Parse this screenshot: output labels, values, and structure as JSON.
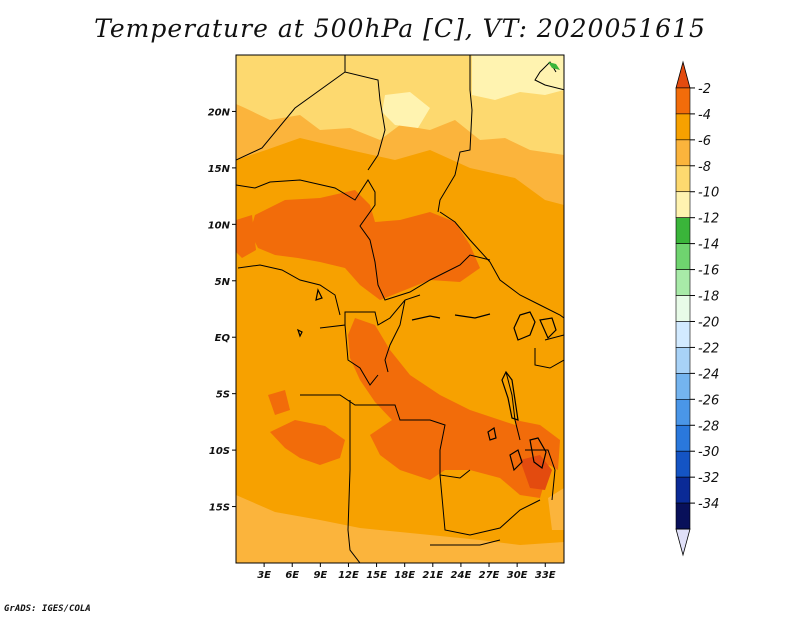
{
  "title": "Temperature at 500hPa [C], VT: 2020051615",
  "credit": "GrADS: IGES/COLA",
  "map": {
    "lat_labels": [
      "20N",
      "15N",
      "10N",
      "5N",
      "EQ",
      "5S",
      "10S",
      "15S"
    ],
    "lat_values": [
      20,
      15,
      10,
      5,
      0,
      -5,
      -10,
      -15
    ],
    "lon_labels": [
      "3E",
      "6E",
      "9E",
      "12E",
      "15E",
      "18E",
      "21E",
      "24E",
      "27E",
      "30E",
      "33E"
    ],
    "lon_values": [
      3,
      6,
      9,
      12,
      15,
      18,
      21,
      24,
      27,
      30,
      33
    ],
    "lon_range": [
      0,
      35
    ],
    "lat_range": [
      -20,
      25
    ]
  },
  "colorbar": {
    "labels": [
      "-2",
      "-4",
      "-6",
      "-8",
      "-10",
      "-12",
      "-14",
      "-16",
      "-18",
      "-20",
      "-22",
      "-24",
      "-26",
      "-28",
      "-30",
      "-32",
      "-34"
    ],
    "colors": [
      "#e34b0f",
      "#f26c0a",
      "#f7a100",
      "#fbb43c",
      "#fdd96f",
      "#fff3b0",
      "#3ab53a",
      "#6fd46f",
      "#a8eaa8",
      "#e8fbe8",
      "#d2eaff",
      "#a8d2f7",
      "#74b4ef",
      "#4a96e8",
      "#2a78dc",
      "#1454c4",
      "#0a2a96",
      "#08105a",
      "#e0e0f8"
    ]
  },
  "palette": {
    "c_m2": "#e34b0f",
    "c_m4": "#f26c0a",
    "c_m6": "#f7a100",
    "c_m8": "#fbb43c",
    "c_m10": "#fdd96f",
    "c_m12": "#fff3b0",
    "green": "#3ab53a"
  }
}
